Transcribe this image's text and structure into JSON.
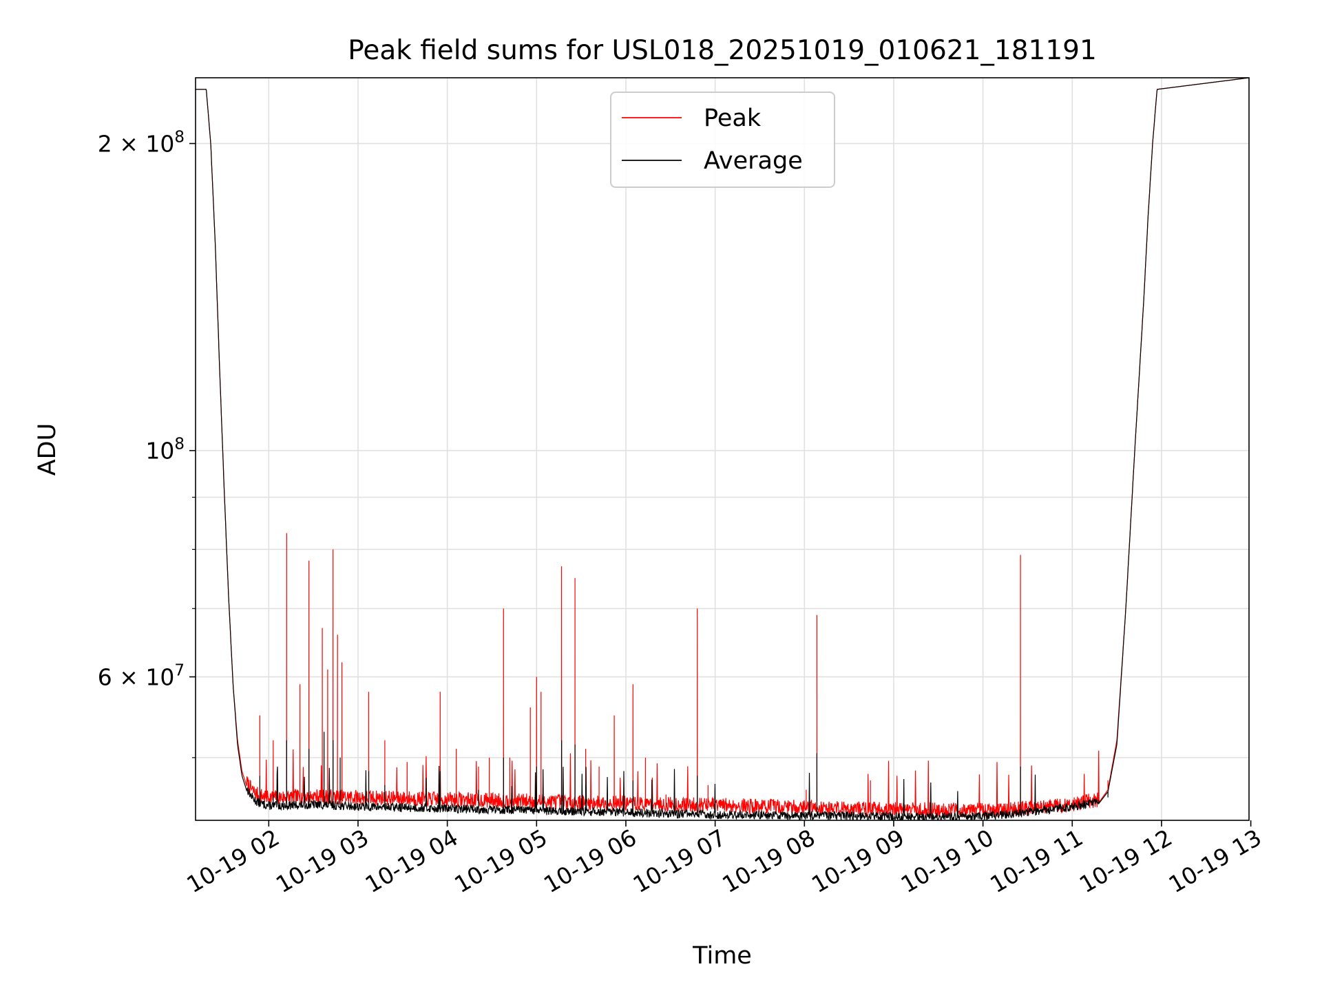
{
  "chart_data": {
    "type": "line",
    "title": "Peak field sums for USL018_20251019_010621_181191",
    "xlabel": "Time",
    "ylabel": "ADU",
    "yscale": "log",
    "xlim_hours": [
      1.18,
      12.98
    ],
    "ylim": [
      43400000,
      232000000
    ],
    "grid": true,
    "legend_position": "upper center",
    "x_ticks": [
      {
        "value": 2,
        "label": "10-19 02"
      },
      {
        "value": 3,
        "label": "10-19 03"
      },
      {
        "value": 4,
        "label": "10-19 04"
      },
      {
        "value": 5,
        "label": "10-19 05"
      },
      {
        "value": 6,
        "label": "10-19 06"
      },
      {
        "value": 7,
        "label": "10-19 07"
      },
      {
        "value": 8,
        "label": "10-19 08"
      },
      {
        "value": 9,
        "label": "10-19 09"
      },
      {
        "value": 10,
        "label": "10-19 10"
      },
      {
        "value": 11,
        "label": "10-19 11"
      },
      {
        "value": 12,
        "label": "10-19 12"
      },
      {
        "value": 13,
        "label": "10-19 13"
      }
    ],
    "y_major_ticks": [
      {
        "value": 60000000,
        "mantissa": "6",
        "base": "10",
        "exp": "7"
      },
      {
        "value": 100000000,
        "mantissa": "",
        "base": "10",
        "exp": "8"
      },
      {
        "value": 200000000,
        "mantissa": "2",
        "base": "10",
        "exp": "8"
      }
    ],
    "y_minor_ticks": [
      50000000,
      70000000,
      80000000,
      90000000
    ],
    "series": [
      {
        "name": "Peak",
        "color": "#ff0000",
        "x": [
          1.18,
          1.3,
          1.35,
          1.4,
          1.45,
          1.5,
          1.55,
          1.6,
          1.65,
          1.7,
          1.75,
          1.8,
          1.85,
          1.9,
          2.0,
          2.2,
          2.5,
          3.0,
          3.5,
          4.0,
          4.5,
          5.0,
          5.5,
          6.0,
          6.5,
          7.0,
          7.5,
          8.0,
          8.5,
          9.0,
          9.5,
          10.0,
          10.5,
          11.0,
          11.3,
          11.4,
          11.5,
          11.6,
          11.7,
          11.8,
          11.85,
          11.9,
          11.95,
          12.98
        ],
        "values": [
          226000000,
          226000000,
          200000000,
          160000000,
          120000000,
          92000000,
          72000000,
          59000000,
          52000000,
          48500000,
          47000000,
          46300000,
          45800000,
          45600000,
          45400000,
          45400000,
          45500000,
          45400000,
          45300000,
          45200000,
          45100000,
          45000000,
          44900000,
          44800000,
          44700000,
          44600000,
          44500000,
          44400000,
          44300000,
          44200000,
          44150000,
          44100000,
          44300000,
          44700000,
          45200000,
          46500000,
          52000000,
          70000000,
          100000000,
          140000000,
          170000000,
          200000000,
          226000000,
          232000000
        ]
      },
      {
        "name": "Average",
        "color": "#000000",
        "x": [
          1.18,
          1.3,
          1.35,
          1.4,
          1.45,
          1.5,
          1.55,
          1.6,
          1.65,
          1.7,
          1.75,
          1.8,
          1.85,
          1.9,
          2.0,
          2.2,
          2.5,
          3.0,
          3.5,
          4.0,
          4.5,
          5.0,
          5.5,
          6.0,
          6.5,
          7.0,
          7.5,
          8.0,
          8.5,
          9.0,
          9.5,
          10.0,
          10.5,
          11.0,
          11.3,
          11.4,
          11.5,
          11.6,
          11.7,
          11.8,
          11.85,
          11.9,
          11.95,
          12.98
        ],
        "values": [
          226000000,
          226000000,
          200000000,
          160000000,
          120000000,
          92000000,
          72000000,
          59000000,
          51500000,
          48000000,
          46500000,
          45700000,
          45200000,
          44900000,
          44700000,
          44700000,
          44800000,
          44600000,
          44500000,
          44400000,
          44300000,
          44200000,
          44100000,
          44000000,
          43900000,
          43800000,
          43750000,
          43700000,
          43650000,
          43600000,
          43600000,
          43600000,
          44000000,
          44600000,
          45100000,
          46300000,
          51500000,
          70000000,
          100000000,
          140000000,
          170000000,
          200000000,
          226000000,
          232000000
        ]
      }
    ],
    "peak_spikes": [
      [
        1.9,
        55000000
      ],
      [
        2.05,
        52000000
      ],
      [
        2.2,
        83000000
      ],
      [
        2.35,
        59000000
      ],
      [
        2.45,
        78000000
      ],
      [
        2.6,
        67000000
      ],
      [
        2.66,
        61000000
      ],
      [
        2.72,
        80000000
      ],
      [
        2.77,
        66000000
      ],
      [
        2.82,
        62000000
      ],
      [
        3.12,
        58000000
      ],
      [
        3.3,
        52000000
      ],
      [
        3.55,
        49500000
      ],
      [
        3.92,
        58000000
      ],
      [
        4.1,
        51000000
      ],
      [
        4.35,
        49000000
      ],
      [
        4.47,
        50000000
      ],
      [
        4.63,
        70000000
      ],
      [
        4.7,
        50000000
      ],
      [
        4.93,
        56000000
      ],
      [
        5.0,
        60000000
      ],
      [
        5.05,
        58000000
      ],
      [
        5.28,
        77000000
      ],
      [
        5.43,
        75000000
      ],
      [
        5.55,
        51000000
      ],
      [
        5.7,
        49000000
      ],
      [
        5.87,
        55000000
      ],
      [
        6.08,
        59000000
      ],
      [
        6.22,
        50000000
      ],
      [
        6.45,
        46000000
      ],
      [
        6.8,
        70000000
      ],
      [
        6.92,
        47000000
      ],
      [
        7.5,
        45000000
      ],
      [
        8.02,
        46500000
      ],
      [
        8.14,
        69000000
      ],
      [
        8.74,
        47500000
      ],
      [
        10.42,
        79000000
      ],
      [
        11.4,
        47500000
      ]
    ],
    "average_spikes": [
      [
        1.9,
        48000000
      ],
      [
        2.05,
        46000000
      ],
      [
        2.2,
        52000000
      ],
      [
        2.45,
        51000000
      ],
      [
        2.62,
        53000000
      ],
      [
        2.72,
        52000000
      ],
      [
        2.8,
        50000000
      ],
      [
        3.12,
        48500000
      ],
      [
        3.3,
        47000000
      ],
      [
        3.92,
        48500000
      ],
      [
        4.35,
        46500000
      ],
      [
        4.63,
        50000000
      ],
      [
        5.0,
        49000000
      ],
      [
        5.28,
        52000000
      ],
      [
        5.43,
        51500000
      ],
      [
        5.55,
        47000000
      ],
      [
        6.08,
        47500000
      ],
      [
        6.8,
        48000000
      ],
      [
        8.14,
        50500000
      ],
      [
        10.42,
        49000000
      ],
      [
        11.4,
        45700000
      ]
    ]
  }
}
